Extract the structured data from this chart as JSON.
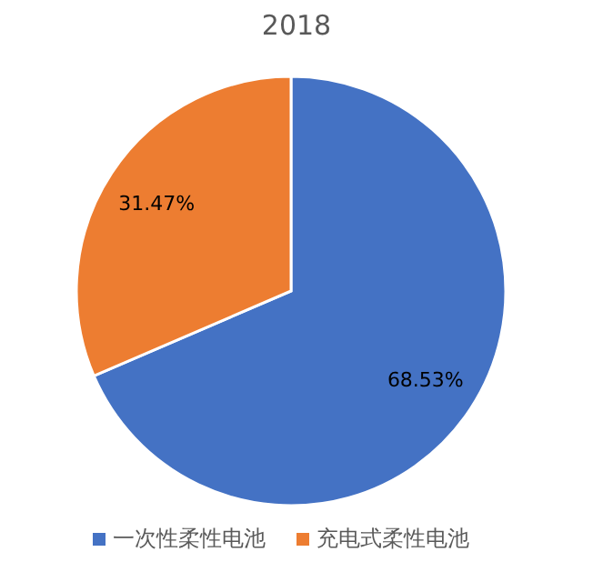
{
  "chart_data": {
    "type": "pie",
    "title": "2018",
    "categories": [
      "一次性柔性电池",
      "充电式柔性电池"
    ],
    "values": [
      68.53,
      31.47
    ],
    "colors": [
      "#4472c4",
      "#ed7d31"
    ],
    "value_labels": [
      "68.53%",
      "31.47%"
    ],
    "legend": "bottom"
  }
}
